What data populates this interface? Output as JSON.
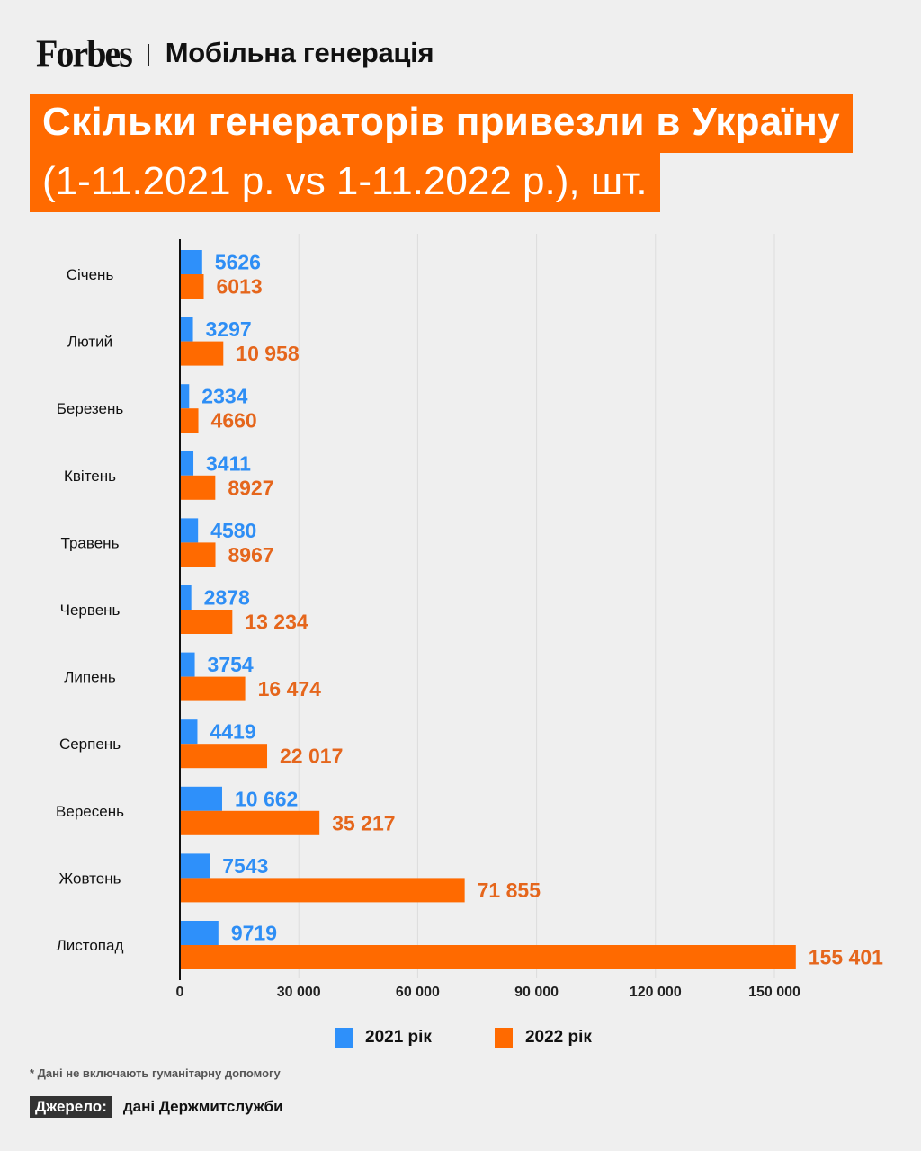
{
  "header": {
    "logo": "Forbes",
    "section": "Мобільна генерація"
  },
  "title": {
    "line1": "Скільки генераторів привезли в Україну",
    "line2": "(1-11.2021 р. vs 1-11.2022 р.), шт."
  },
  "colors": {
    "series_2021": "#2e90fa",
    "series_2022": "#ff6a00",
    "label_2021": "#2e8ef5",
    "label_2022": "#e5661c",
    "title_bg": "#ff6a00",
    "background": "#efefef"
  },
  "chart_data": {
    "type": "bar",
    "orientation": "horizontal",
    "title": "Скільки генераторів привезли в Україну (1-11.2021 р. vs 1-11.2022 р.), шт.",
    "xlabel": "",
    "ylabel": "",
    "categories": [
      "Січень",
      "Лютий",
      "Березень",
      "Квітень",
      "Травень",
      "Червень",
      "Липень",
      "Серпень",
      "Вересень",
      "Жовтень",
      "Листопад"
    ],
    "series": [
      {
        "name": "2021 рік",
        "values": [
          5626,
          3297,
          2334,
          3411,
          4580,
          2878,
          3754,
          4419,
          10662,
          7543,
          9719
        ],
        "labels": [
          "5626",
          "3297",
          "2334",
          "3411",
          "4580",
          "2878",
          "3754",
          "4419",
          "10 662",
          "7543",
          "9719"
        ]
      },
      {
        "name": "2022 рік",
        "values": [
          6013,
          10958,
          4660,
          8927,
          8967,
          13234,
          16474,
          22017,
          35217,
          71855,
          155401
        ],
        "labels": [
          "6013",
          "10 958",
          "4660",
          "8927",
          "8967",
          "13 234",
          "16 474",
          "22 017",
          "35 217",
          "71 855",
          "155 401"
        ]
      }
    ],
    "xlim": [
      0,
      155401
    ],
    "xticks": [
      0,
      30000,
      60000,
      90000,
      120000,
      150000
    ],
    "xtick_labels": [
      "0",
      "30 000",
      "60 000",
      "90 000",
      "120 000",
      "150 000"
    ],
    "grid": "vertical",
    "legend": "bottom-center"
  },
  "legend": {
    "items": [
      {
        "label": "2021 рік"
      },
      {
        "label": "2022 рік"
      }
    ]
  },
  "footer": {
    "note": "* Дані не включають гуманітарну допомогу",
    "source_tag": "Джерело:",
    "source_text": "дані Держмитслужби"
  }
}
